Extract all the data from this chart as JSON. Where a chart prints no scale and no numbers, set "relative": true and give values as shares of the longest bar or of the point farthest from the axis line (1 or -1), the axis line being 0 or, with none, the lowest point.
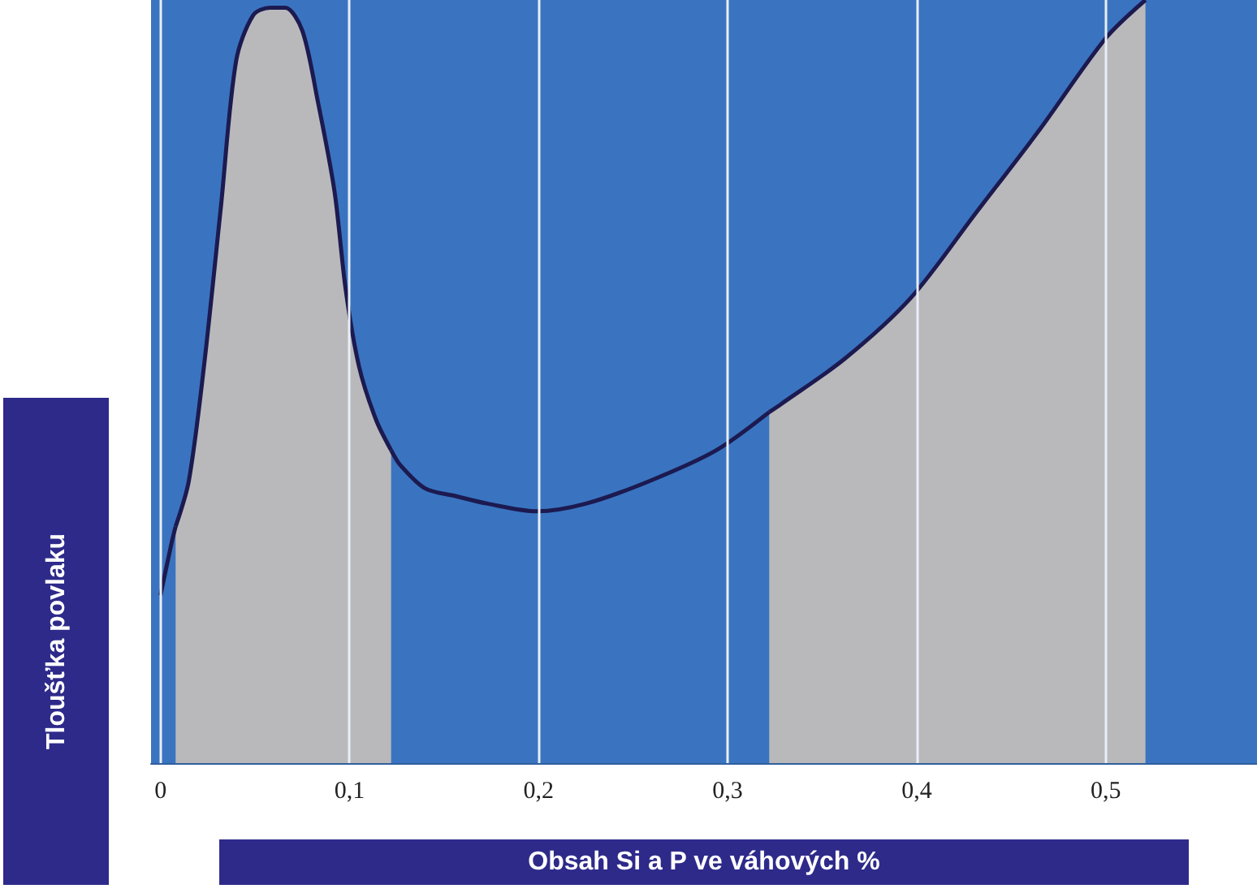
{
  "chart_data": {
    "type": "area",
    "xlabel": "Obsah Si a P ve váhových %",
    "ylabel": "Tloušťka povlaku",
    "relative": true,
    "marker": "none",
    "grid": "x",
    "series": [
      {
        "type": "line",
        "color": "#1c1a50",
        "x": [
          0,
          0.006,
          0.008
        ],
        "values": [
          0.22,
          0.29,
          0.31
        ]
      },
      {
        "color": "#1c1a50",
        "x": [
          0.008,
          0.015,
          0.023,
          0.032,
          0.04,
          0.049,
          0.058,
          0.066,
          0.075,
          0.083,
          0.092,
          0.098,
          0.105,
          0.114,
          0.122
        ],
        "values": [
          0.31,
          0.37,
          0.52,
          0.73,
          0.92,
          0.98,
          0.99,
          0.99,
          0.96,
          0.87,
          0.75,
          0.62,
          0.52,
          0.45,
          0.41
        ]
      },
      {
        "type": "line",
        "color": "#1c1a50",
        "x": [
          0.122,
          0.127,
          0.14,
          0.156,
          0.173,
          0.199,
          0.225,
          0.259,
          0.294,
          0.322
        ],
        "values": [
          0.41,
          0.39,
          0.36,
          0.35,
          0.34,
          0.33,
          0.34,
          0.37,
          0.41,
          0.46
        ]
      },
      {
        "color": "#1c1a50",
        "x": [
          0.322,
          0.328,
          0.362,
          0.397,
          0.431,
          0.465,
          0.5,
          0.521
        ],
        "values": [
          0.46,
          0.47,
          0.53,
          0.61,
          0.72,
          0.83,
          0.95,
          1
        ]
      }
    ],
    "xlim": [
      -0.005,
      0.58
    ],
    "xticks": [
      {
        "value": 0,
        "label": "0"
      },
      {
        "value": 0.1,
        "label": "0,1"
      },
      {
        "value": 0.2,
        "label": "0,2"
      },
      {
        "value": 0.3,
        "label": "0,3"
      },
      {
        "value": 0.4,
        "label": "0,4"
      },
      {
        "value": 0.5,
        "label": "0,5"
      }
    ],
    "bands": [
      {
        "axis": "x",
        "from": -0.005,
        "to": 0.58,
        "color": "#3a74c0"
      }
    ]
  }
}
